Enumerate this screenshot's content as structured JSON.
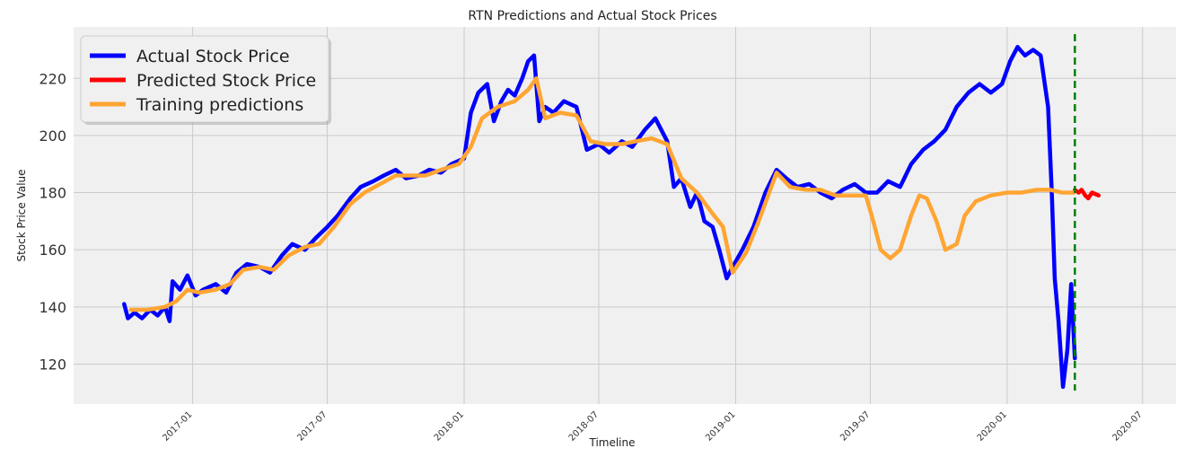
{
  "chart_data": {
    "type": "line",
    "title": "RTN Predictions and Actual Stock Prices",
    "xlabel": "Timeline",
    "ylabel": "Stock Price Value",
    "xlim": [
      "2016-07-25",
      "2020-08-15"
    ],
    "ylim": [
      106,
      238
    ],
    "yticks": [
      120,
      140,
      160,
      180,
      200,
      220
    ],
    "xticks": [
      "2017-01",
      "2017-07",
      "2018-01",
      "2018-07",
      "2019-01",
      "2019-07",
      "2020-01",
      "2020-07"
    ],
    "grid": true,
    "legend_placement": "upper-left",
    "background": "#f0f0f0",
    "vline": {
      "x": "2020-04-01",
      "color": "#008000",
      "style": "dashed"
    },
    "series": [
      {
        "name": "Actual Stock Price",
        "color": "#0000ff",
        "points": [
          [
            "2016-10-01",
            141
          ],
          [
            "2016-10-06",
            136
          ],
          [
            "2016-10-15",
            138
          ],
          [
            "2016-10-25",
            136
          ],
          [
            "2016-11-05",
            139
          ],
          [
            "2016-11-15",
            137
          ],
          [
            "2016-11-25",
            140
          ],
          [
            "2016-12-01",
            135
          ],
          [
            "2016-12-05",
            149
          ],
          [
            "2016-12-15",
            146
          ],
          [
            "2016-12-25",
            151
          ],
          [
            "2017-01-05",
            144
          ],
          [
            "2017-01-15",
            146
          ],
          [
            "2017-02-01",
            148
          ],
          [
            "2017-02-15",
            145
          ],
          [
            "2017-03-01",
            152
          ],
          [
            "2017-03-15",
            155
          ],
          [
            "2017-04-01",
            154
          ],
          [
            "2017-04-15",
            152
          ],
          [
            "2017-05-01",
            158
          ],
          [
            "2017-05-15",
            162
          ],
          [
            "2017-06-01",
            160
          ],
          [
            "2017-06-15",
            164
          ],
          [
            "2017-07-01",
            168
          ],
          [
            "2017-07-15",
            172
          ],
          [
            "2017-08-01",
            178
          ],
          [
            "2017-08-15",
            182
          ],
          [
            "2017-09-01",
            184
          ],
          [
            "2017-09-15",
            186
          ],
          [
            "2017-10-01",
            188
          ],
          [
            "2017-10-15",
            185
          ],
          [
            "2017-11-01",
            186
          ],
          [
            "2017-11-15",
            188
          ],
          [
            "2017-12-01",
            187
          ],
          [
            "2017-12-15",
            190
          ],
          [
            "2018-01-01",
            192
          ],
          [
            "2018-01-10",
            208
          ],
          [
            "2018-01-20",
            215
          ],
          [
            "2018-02-01",
            218
          ],
          [
            "2018-02-10",
            205
          ],
          [
            "2018-02-20",
            212
          ],
          [
            "2018-03-01",
            216
          ],
          [
            "2018-03-10",
            214
          ],
          [
            "2018-03-20",
            220
          ],
          [
            "2018-03-28",
            226
          ],
          [
            "2018-04-05",
            228
          ],
          [
            "2018-04-12",
            205
          ],
          [
            "2018-04-20",
            210
          ],
          [
            "2018-05-01",
            208
          ],
          [
            "2018-05-15",
            212
          ],
          [
            "2018-06-01",
            210
          ],
          [
            "2018-06-15",
            195
          ],
          [
            "2018-07-01",
            197
          ],
          [
            "2018-07-15",
            194
          ],
          [
            "2018-08-01",
            198
          ],
          [
            "2018-08-15",
            196
          ],
          [
            "2018-09-01",
            202
          ],
          [
            "2018-09-15",
            206
          ],
          [
            "2018-10-01",
            198
          ],
          [
            "2018-10-10",
            182
          ],
          [
            "2018-10-20",
            185
          ],
          [
            "2018-11-01",
            175
          ],
          [
            "2018-11-10",
            180
          ],
          [
            "2018-11-20",
            170
          ],
          [
            "2018-12-01",
            168
          ],
          [
            "2018-12-10",
            160
          ],
          [
            "2018-12-20",
            150
          ],
          [
            "2018-12-28",
            154
          ],
          [
            "2019-01-10",
            160
          ],
          [
            "2019-01-25",
            168
          ],
          [
            "2019-02-10",
            180
          ],
          [
            "2019-02-25",
            188
          ],
          [
            "2019-03-10",
            185
          ],
          [
            "2019-03-25",
            182
          ],
          [
            "2019-04-10",
            183
          ],
          [
            "2019-04-25",
            180
          ],
          [
            "2019-05-10",
            178
          ],
          [
            "2019-05-25",
            181
          ],
          [
            "2019-06-10",
            183
          ],
          [
            "2019-06-25",
            180
          ],
          [
            "2019-07-10",
            180
          ],
          [
            "2019-07-25",
            184
          ],
          [
            "2019-08-10",
            182
          ],
          [
            "2019-08-25",
            190
          ],
          [
            "2019-09-10",
            195
          ],
          [
            "2019-09-25",
            198
          ],
          [
            "2019-10-10",
            202
          ],
          [
            "2019-10-25",
            210
          ],
          [
            "2019-11-10",
            215
          ],
          [
            "2019-11-25",
            218
          ],
          [
            "2019-12-10",
            215
          ],
          [
            "2019-12-25",
            218
          ],
          [
            "2020-01-05",
            226
          ],
          [
            "2020-01-15",
            231
          ],
          [
            "2020-01-25",
            228
          ],
          [
            "2020-02-05",
            230
          ],
          [
            "2020-02-15",
            228
          ],
          [
            "2020-02-25",
            210
          ],
          [
            "2020-03-01",
            180
          ],
          [
            "2020-03-05",
            150
          ],
          [
            "2020-03-10",
            135
          ],
          [
            "2020-03-16",
            112
          ],
          [
            "2020-03-22",
            125
          ],
          [
            "2020-03-27",
            148
          ],
          [
            "2020-04-01",
            122
          ]
        ]
      },
      {
        "name": "Predicted Stock Price",
        "color": "#ff0000",
        "points": [
          [
            "2020-04-01",
            181
          ],
          [
            "2020-04-06",
            180
          ],
          [
            "2020-04-10",
            181
          ],
          [
            "2020-04-15",
            179
          ],
          [
            "2020-04-19",
            178
          ],
          [
            "2020-04-24",
            180
          ],
          [
            "2020-05-03",
            179
          ]
        ]
      },
      {
        "name": "Training predictions",
        "color": "#ffa533",
        "points": [
          [
            "2016-10-10",
            139
          ],
          [
            "2016-11-01",
            139
          ],
          [
            "2016-11-25",
            140
          ],
          [
            "2016-12-10",
            142
          ],
          [
            "2016-12-25",
            146
          ],
          [
            "2017-01-10",
            145
          ],
          [
            "2017-02-01",
            146
          ],
          [
            "2017-02-20",
            148
          ],
          [
            "2017-03-10",
            153
          ],
          [
            "2017-04-01",
            154
          ],
          [
            "2017-04-20",
            153
          ],
          [
            "2017-05-10",
            158
          ],
          [
            "2017-06-01",
            161
          ],
          [
            "2017-06-20",
            162
          ],
          [
            "2017-07-10",
            168
          ],
          [
            "2017-08-01",
            176
          ],
          [
            "2017-08-20",
            180
          ],
          [
            "2017-09-10",
            183
          ],
          [
            "2017-10-01",
            186
          ],
          [
            "2017-10-20",
            186
          ],
          [
            "2017-11-10",
            186
          ],
          [
            "2017-12-01",
            188
          ],
          [
            "2017-12-25",
            190
          ],
          [
            "2018-01-10",
            196
          ],
          [
            "2018-01-25",
            206
          ],
          [
            "2018-02-15",
            210
          ],
          [
            "2018-03-10",
            212
          ],
          [
            "2018-03-28",
            216
          ],
          [
            "2018-04-08",
            220
          ],
          [
            "2018-04-20",
            206
          ],
          [
            "2018-05-10",
            208
          ],
          [
            "2018-06-01",
            207
          ],
          [
            "2018-06-20",
            198
          ],
          [
            "2018-07-10",
            197
          ],
          [
            "2018-08-01",
            197
          ],
          [
            "2018-08-20",
            198
          ],
          [
            "2018-09-10",
            199
          ],
          [
            "2018-10-01",
            197
          ],
          [
            "2018-10-20",
            185
          ],
          [
            "2018-11-10",
            180
          ],
          [
            "2018-11-30",
            173
          ],
          [
            "2018-12-15",
            168
          ],
          [
            "2018-12-28",
            152
          ],
          [
            "2019-01-15",
            159
          ],
          [
            "2019-02-01",
            170
          ],
          [
            "2019-02-25",
            187
          ],
          [
            "2019-03-15",
            182
          ],
          [
            "2019-04-05",
            181
          ],
          [
            "2019-04-25",
            181
          ],
          [
            "2019-05-15",
            179
          ],
          [
            "2019-06-05",
            179
          ],
          [
            "2019-06-25",
            179
          ],
          [
            "2019-07-05",
            170
          ],
          [
            "2019-07-15",
            160
          ],
          [
            "2019-07-28",
            157
          ],
          [
            "2019-08-10",
            160
          ],
          [
            "2019-08-25",
            172
          ],
          [
            "2019-09-05",
            179
          ],
          [
            "2019-09-15",
            178
          ],
          [
            "2019-09-28",
            170
          ],
          [
            "2019-10-10",
            160
          ],
          [
            "2019-10-25",
            162
          ],
          [
            "2019-11-05",
            172
          ],
          [
            "2019-11-20",
            177
          ],
          [
            "2019-12-10",
            179
          ],
          [
            "2020-01-01",
            180
          ],
          [
            "2020-01-20",
            180
          ],
          [
            "2020-02-10",
            181
          ],
          [
            "2020-02-28",
            181
          ],
          [
            "2020-03-15",
            180
          ],
          [
            "2020-03-31",
            180
          ]
        ]
      }
    ]
  }
}
